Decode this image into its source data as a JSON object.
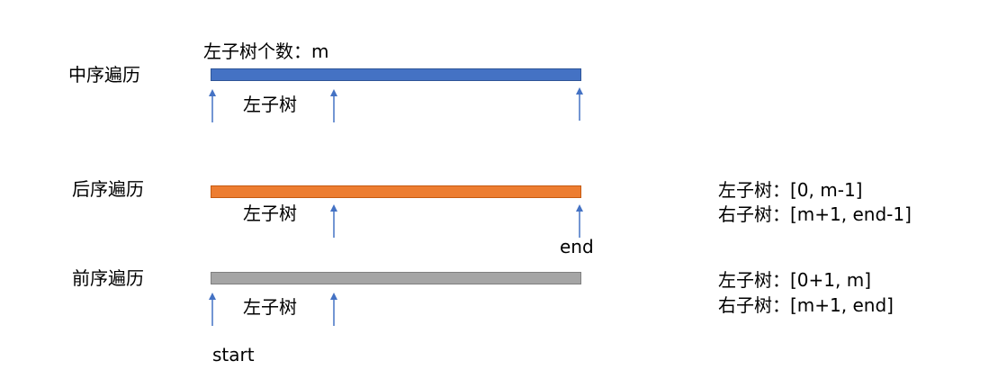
{
  "rows": {
    "inorder": {
      "title": "中序遍历",
      "note": "左子树个数：m",
      "subtree_label": "左子树",
      "bar_color": "#4472C4",
      "bar_border": "#2F5597"
    },
    "postorder": {
      "title": "后序遍历",
      "subtree_label": "左子树",
      "end_label": "end",
      "bar_color": "#ED7D31",
      "bar_border": "#C55A11",
      "left_range": "左子树：[0, m-1]",
      "right_range": "右子树：[m+1, end-1]"
    },
    "preorder": {
      "title": "前序遍历",
      "subtree_label": "左子树",
      "start_label": "start",
      "bar_color": "#A5A5A5",
      "bar_border": "#7F7F7F",
      "left_range": "左子树：[0+1, m]",
      "right_range": "右子树：[m+1, end]"
    }
  },
  "arrow_color": "#4472C4"
}
